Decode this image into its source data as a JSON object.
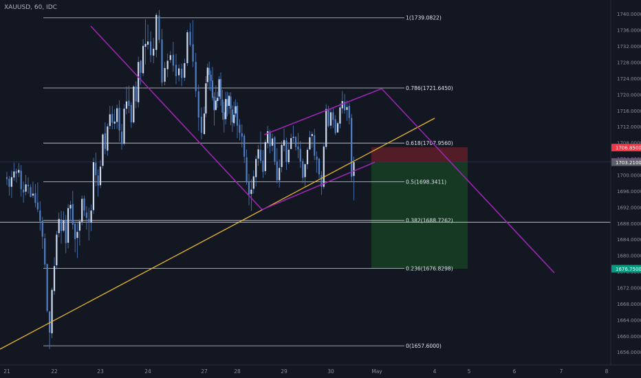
{
  "symbol_title": "XAUUSD, 60, IDC",
  "colors": {
    "background": "#131722",
    "candle": "#4f7fc4",
    "fib_line": "#d1d4dc",
    "trend_channel": "#9c27b0",
    "trend_support": "#e8b92a",
    "stop_zone": "#5a1e28",
    "target_zone": "#163b25",
    "axis_text": "#8b8f9c",
    "red_tag": "#f23645",
    "purple_tag": "#9c27b0",
    "gray_tag": "#5d606b",
    "green_tag": "#089981"
  },
  "chart_data": {
    "type": "candlestick",
    "instrument": "XAUUSD",
    "timeframe": "60",
    "source": "IDC",
    "ylim": [
      1653,
      1745
    ],
    "y_ticks": [
      "1740.0000",
      "1736.0000",
      "1732.0000",
      "1728.0000",
      "1724.0000",
      "1720.0000",
      "1716.0000",
      "1712.0000",
      "1708.0000",
      "1704.0000",
      "1700.0000",
      "1696.0000",
      "1692.0000",
      "1688.0000",
      "1684.0000",
      "1680.0000",
      "1676.0000",
      "1672.0000",
      "1668.0000",
      "1664.0000",
      "1660.0000",
      "1656.0000"
    ],
    "x_ticks": [
      "21",
      "22",
      "23",
      "24",
      "27",
      "28",
      "29",
      "30",
      "May",
      "4",
      "5",
      "6",
      "7",
      "8"
    ],
    "fib_levels": [
      {
        "level": "1",
        "price": 1739.0822,
        "label": "1(1739.0822)"
      },
      {
        "level": "0.786",
        "price": 1721.645,
        "label": "0.786(1721.6450)"
      },
      {
        "level": "0.618",
        "price": 1707.956,
        "label": "0.618(1707.9560)"
      },
      {
        "level": "0.5",
        "price": 1698.3411,
        "label": "0.5(1698.3411)"
      },
      {
        "level": "0.382",
        "price": 1688.7262,
        "label": "0.382(1688.7262)"
      },
      {
        "level": "0.236",
        "price": 1676.8298,
        "label": "0.236(1676.8298)"
      },
      {
        "level": "0",
        "price": 1657.6,
        "label": "0(1657.6000)"
      }
    ],
    "price_tags": [
      {
        "value": "1706.8500",
        "price": 1706.85,
        "role": "stop"
      },
      {
        "value": "1703.2550",
        "price": 1703.255,
        "role": "entry"
      },
      {
        "value": "1703.2100",
        "price": 1703.21,
        "role": "last"
      },
      {
        "value": "1676.7500",
        "price": 1676.75,
        "role": "target"
      }
    ],
    "horizontal_line": 1688.3,
    "short_position": {
      "entry": 1703.255,
      "stop": 1706.85,
      "target": 1676.75
    },
    "candles": [
      [
        21,
        1699.5,
        1700.8,
        1697.5,
        1699
      ],
      [
        21.05,
        1699.1,
        1699.8,
        1694.9,
        1697.1
      ],
      [
        21.1,
        1697.1,
        1701.1,
        1694.3,
        1699.5
      ],
      [
        21.15,
        1699.4,
        1703.1,
        1698.6,
        1700.9
      ],
      [
        21.2,
        1701,
        1701.6,
        1698.2,
        1700.4
      ],
      [
        21.25,
        1700.6,
        1703,
        1699.5,
        1701.3
      ],
      [
        21.3,
        1701.1,
        1702.5,
        1694.7,
        1696.5
      ],
      [
        21.35,
        1696.4,
        1698.4,
        1693.1,
        1695.7
      ],
      [
        21.4,
        1695.9,
        1700,
        1695,
        1697.7
      ],
      [
        21.45,
        1697.6,
        1699.4,
        1695.4,
        1697.2
      ],
      [
        21.5,
        1697,
        1697.7,
        1694.5,
        1694.6
      ],
      [
        21.55,
        1694.9,
        1698.4,
        1694.3,
        1695.4
      ],
      [
        21.6,
        1695.5,
        1697.8,
        1692,
        1693.1
      ],
      [
        21.65,
        1693.2,
        1698.2,
        1690.8,
        1691.5
      ],
      [
        21.7,
        1691.2,
        1693.5,
        1686.2,
        1688.6
      ],
      [
        21.75,
        1688.7,
        1689.6,
        1681.7,
        1684.7
      ],
      [
        21.8,
        1684.3,
        1685.5,
        1676.7,
        1677.8
      ],
      [
        21.85,
        1677.9,
        1678,
        1665.9,
        1666.3
      ],
      [
        21.9,
        1666.1,
        1666.3,
        1656.8,
        1660.9
      ],
      [
        21.95,
        1660.7,
        1672.1,
        1659.5,
        1671.5
      ],
      [
        22,
        1671.2,
        1679.6,
        1670.3,
        1677.4
      ],
      [
        22.05,
        1677.6,
        1686.1,
        1676.6,
        1685.2
      ],
      [
        22.1,
        1685.6,
        1690.7,
        1684.6,
        1689.1
      ],
      [
        22.15,
        1689,
        1691.1,
        1683,
        1686.1
      ],
      [
        22.2,
        1686.2,
        1691,
        1685.8,
        1688.8
      ],
      [
        22.25,
        1688.9,
        1690.1,
        1680.6,
        1683.1
      ],
      [
        22.3,
        1683.2,
        1692.8,
        1681.8,
        1691.8
      ],
      [
        22.35,
        1691.7,
        1693.6,
        1688.6,
        1692.6
      ],
      [
        22.4,
        1692.8,
        1696.1,
        1686.5,
        1687.7
      ],
      [
        22.45,
        1687.9,
        1688.4,
        1680.8,
        1684.1
      ],
      [
        22.5,
        1684.4,
        1688.1,
        1679.4,
        1685.9
      ],
      [
        22.55,
        1686.2,
        1689.1,
        1682.5,
        1688.5
      ],
      [
        22.6,
        1688.4,
        1694.9,
        1687.5,
        1694.1
      ],
      [
        22.65,
        1694.2,
        1694.9,
        1689.8,
        1691.2
      ],
      [
        22.7,
        1690.7,
        1692.3,
        1686.5,
        1689.4
      ],
      [
        22.75,
        1689.1,
        1691.9,
        1683.8,
        1688.3
      ],
      [
        22.8,
        1688.2,
        1692.7,
        1686.1,
        1691.2
      ],
      [
        22.85,
        1691.3,
        1704.3,
        1690.4,
        1703.2
      ],
      [
        22.9,
        1703.1,
        1705.6,
        1697.3,
        1700
      ],
      [
        22.95,
        1699.9,
        1701.4,
        1694.7,
        1697.4
      ],
      [
        23,
        1697.5,
        1703.8,
        1696.8,
        1702.1
      ],
      [
        23.05,
        1702.3,
        1710.4,
        1701.6,
        1710.1
      ],
      [
        23.1,
        1710.4,
        1713.1,
        1705.2,
        1706.5
      ],
      [
        23.15,
        1706.1,
        1712.8,
        1704.8,
        1712.1
      ],
      [
        23.2,
        1712.2,
        1717.2,
        1711.4,
        1715.1
      ],
      [
        23.25,
        1715.2,
        1717.2,
        1711.4,
        1713
      ],
      [
        23.3,
        1712.8,
        1716.4,
        1711.4,
        1713.3
      ],
      [
        23.35,
        1713.2,
        1717.5,
        1711.5,
        1716.6
      ],
      [
        23.4,
        1716.7,
        1718.6,
        1708.3,
        1711.1
      ],
      [
        23.45,
        1710.8,
        1712.7,
        1706.3,
        1707.7
      ],
      [
        23.5,
        1707.8,
        1717.6,
        1707.4,
        1716.5
      ],
      [
        23.55,
        1716.5,
        1722,
        1715.1,
        1718.3
      ],
      [
        23.6,
        1718.5,
        1722.2,
        1715.4,
        1717.2
      ],
      [
        23.65,
        1717.4,
        1718.1,
        1711.7,
        1713.1
      ],
      [
        23.7,
        1713.1,
        1722.4,
        1712.8,
        1722
      ],
      [
        23.75,
        1722,
        1723.3,
        1716.6,
        1718.3
      ],
      [
        23.8,
        1718.1,
        1729.4,
        1716.8,
        1728.1
      ],
      [
        23.85,
        1728.4,
        1728.6,
        1722.4,
        1725.4
      ],
      [
        23.9,
        1725.3,
        1733.8,
        1724.6,
        1732.1
      ],
      [
        23.95,
        1731.9,
        1738.7,
        1727.5,
        1732.6
      ],
      [
        24,
        1732.4,
        1737.4,
        1731.2,
        1733.2
      ],
      [
        24.05,
        1733.2,
        1735.7,
        1728,
        1729.8
      ],
      [
        24.1,
        1729.7,
        1734.1,
        1727.8,
        1731.4
      ],
      [
        24.15,
        1731.1,
        1740.3,
        1729.3,
        1739.8
      ],
      [
        24.2,
        1739.6,
        1741,
        1732.8,
        1733.6
      ],
      [
        24.25,
        1733.7,
        1736.3,
        1722.1,
        1723
      ],
      [
        24.3,
        1723.2,
        1728.1,
        1722.3,
        1726.6
      ],
      [
        24.35,
        1726.3,
        1730.2,
        1724.3,
        1728.4
      ],
      [
        24.4,
        1728.6,
        1730.8,
        1727.9,
        1729.8
      ],
      [
        24.45,
        1729.9,
        1733.1,
        1725.7,
        1727.2
      ],
      [
        24.5,
        1727.4,
        1730.1,
        1722.6,
        1724.6
      ],
      [
        24.55,
        1724.8,
        1727.5,
        1723.3,
        1726.5
      ],
      [
        24.6,
        1726.4,
        1727.7,
        1722.1,
        1724.1
      ],
      [
        24.65,
        1724.2,
        1728.9,
        1723.4,
        1727.8
      ],
      [
        24.7,
        1727.8,
        1736.1,
        1727.1,
        1735.5
      ],
      [
        24.75,
        1735.6,
        1737.8,
        1731.9,
        1732.3
      ],
      [
        24.8,
        1732.5,
        1738.5,
        1726.8,
        1728.2
      ],
      [
        24.85,
        1728.1,
        1730.4,
        1719.4,
        1720.9
      ],
      [
        24.9,
        1720.8,
        1722.5,
        1711,
        1714.3
      ],
      [
        24.95,
        1714.5,
        1716.8,
        1708.9,
        1710.5
      ],
      [
        27,
        1710.2,
        1717,
        1710,
        1715.3
      ],
      [
        27.05,
        1715.3,
        1724.6,
        1714.4,
        1722.8
      ],
      [
        27.1,
        1723.1,
        1727.7,
        1722,
        1726.7
      ],
      [
        27.15,
        1726.6,
        1728.2,
        1721.1,
        1724.9
      ],
      [
        27.2,
        1724.9,
        1726,
        1720.9,
        1723.4
      ],
      [
        27.25,
        1723.5,
        1726.9,
        1718.5,
        1719.2
      ],
      [
        27.3,
        1719.5,
        1720.6,
        1712.3,
        1716.1
      ],
      [
        27.35,
        1716.2,
        1722.3,
        1716,
        1718.5
      ],
      [
        27.4,
        1718.4,
        1720.7,
        1716.7,
        1719.2
      ],
      [
        27.45,
        1719.5,
        1724.6,
        1718.5,
        1723.8
      ],
      [
        27.5,
        1723.9,
        1725.5,
        1717.2,
        1718.9
      ],
      [
        27.55,
        1718.8,
        1721.2,
        1713.7,
        1715.5
      ],
      [
        27.6,
        1715.6,
        1718.2,
        1710.6,
        1713.8
      ],
      [
        27.65,
        1713.9,
        1720.7,
        1712.6,
        1718.9
      ],
      [
        27.7,
        1718.9,
        1720.7,
        1714.6,
        1717.1
      ],
      [
        27.75,
        1717.2,
        1720.5,
        1715.2,
        1719.7
      ],
      [
        27.8,
        1719.5,
        1720.6,
        1712.4,
        1716.5
      ],
      [
        27.85,
        1716.3,
        1717.3,
        1710.7,
        1713.1
      ],
      [
        27.9,
        1712.9,
        1718.3,
        1712.1,
        1715
      ],
      [
        27.95,
        1715.3,
        1718.8,
        1714.4,
        1717.1
      ],
      [
        28,
        1717.2,
        1718.1,
        1709.2,
        1712.3
      ],
      [
        28.05,
        1712.5,
        1713.9,
        1708.6,
        1710.5
      ],
      [
        28.1,
        1710.4,
        1712.6,
        1706.9,
        1709.6
      ],
      [
        28.15,
        1709.8,
        1710.3,
        1703,
        1704.6
      ],
      [
        28.2,
        1704.4,
        1706.4,
        1697.6,
        1698.2
      ],
      [
        28.25,
        1698.3,
        1700.3,
        1692.5,
        1695.2
      ],
      [
        28.3,
        1695.3,
        1699,
        1691.1,
        1696.4
      ],
      [
        28.35,
        1696.6,
        1701.2,
        1695.4,
        1699.7
      ],
      [
        28.4,
        1699.5,
        1704.8,
        1697.2,
        1704
      ],
      [
        28.45,
        1704.1,
        1707.5,
        1702.3,
        1706.4
      ],
      [
        28.5,
        1706.3,
        1710.8,
        1702.9,
        1703.5
      ],
      [
        28.55,
        1703.6,
        1706.2,
        1699.3,
        1700.8
      ],
      [
        28.6,
        1701,
        1708.9,
        1700.1,
        1708.2
      ],
      [
        28.65,
        1708,
        1712.2,
        1706.6,
        1710.9
      ],
      [
        28.7,
        1710.8,
        1711.3,
        1705.4,
        1707.1
      ],
      [
        28.75,
        1707.3,
        1710.3,
        1705.9,
        1709.1
      ],
      [
        28.8,
        1709.4,
        1709.7,
        1702.5,
        1703.3
      ],
      [
        28.85,
        1703.4,
        1706.7,
        1697.9,
        1698.7
      ],
      [
        28.9,
        1698.7,
        1703.9,
        1696.9,
        1701.8
      ],
      [
        28.95,
        1702,
        1708.5,
        1700.7,
        1707.5
      ],
      [
        29,
        1707.3,
        1711.6,
        1705.9,
        1708.7
      ],
      [
        29.05,
        1708.6,
        1709.3,
        1701.3,
        1703.3
      ],
      [
        29.1,
        1703.2,
        1708.1,
        1702.7,
        1706.3
      ],
      [
        29.15,
        1706.5,
        1710.3,
        1706.4,
        1709.2
      ],
      [
        29.2,
        1709.3,
        1712.3,
        1708.2,
        1709.5
      ],
      [
        29.25,
        1709.5,
        1709.7,
        1706.1,
        1707
      ],
      [
        29.3,
        1707.1,
        1710.5,
        1704.2,
        1706.4
      ],
      [
        29.35,
        1706.5,
        1708.5,
        1701.8,
        1703.4
      ],
      [
        29.4,
        1703.5,
        1704.1,
        1698,
        1699.3
      ],
      [
        29.45,
        1699.5,
        1702.9,
        1696.9,
        1702.7
      ],
      [
        29.5,
        1702.7,
        1706.9,
        1701.5,
        1706.3
      ],
      [
        29.55,
        1706.4,
        1711,
        1706.2,
        1709.4
      ],
      [
        29.6,
        1709.7,
        1710.8,
        1706.8,
        1710.2
      ],
      [
        29.65,
        1709.9,
        1711.5,
        1703.7,
        1704.8
      ],
      [
        29.7,
        1704.6,
        1705.9,
        1700.6,
        1703.8
      ],
      [
        29.75,
        1704.1,
        1704.3,
        1699.2,
        1700.2
      ],
      [
        29.8,
        1700,
        1701,
        1695.1,
        1697.1
      ],
      [
        29.85,
        1697.1,
        1708.1,
        1696.6,
        1707.1
      ],
      [
        29.9,
        1707,
        1717.6,
        1706.4,
        1716.4
      ],
      [
        29.95,
        1716.2,
        1717.2,
        1711.9,
        1712.2
      ],
      [
        30,
        1712.3,
        1716.4,
        1711.5,
        1715.6
      ],
      [
        30.05,
        1715.6,
        1716.8,
        1711.7,
        1713.7
      ],
      [
        30.1,
        1713.9,
        1714.9,
        1709.9,
        1710.4
      ],
      [
        30.15,
        1710.6,
        1713.3,
        1710.5,
        1712.9
      ],
      [
        30.2,
        1712.8,
        1717.8,
        1711.6,
        1716.8
      ],
      [
        30.25,
        1716.6,
        1720.9,
        1715.3,
        1718.4
      ],
      [
        30.3,
        1718.2,
        1720.2,
        1715.3,
        1716.1
      ],
      [
        30.35,
        1716.2,
        1718.5,
        1713.5,
        1716.9
      ],
      [
        30.4,
        1717.2,
        1718,
        1712.6,
        1714.2
      ],
      [
        30.45,
        1714.2,
        1715.2,
        1698.5,
        1699.6
      ],
      [
        30.5,
        1699.8,
        1704.6,
        1693.7,
        1703.2
      ]
    ]
  }
}
